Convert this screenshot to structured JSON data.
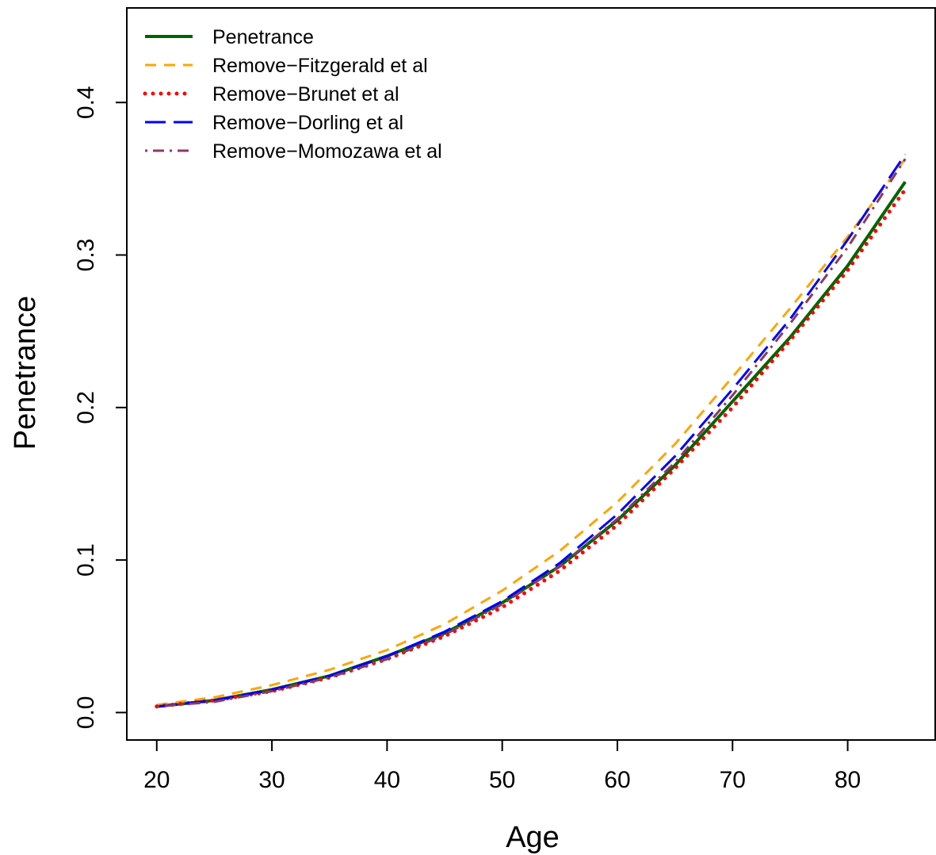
{
  "chart_data": {
    "type": "line",
    "title": "",
    "xlabel": "Age",
    "ylabel": "Penetrance",
    "xlim": [
      17.4,
      87.6
    ],
    "ylim": [
      -0.018,
      0.462
    ],
    "xticks": [
      20,
      30,
      40,
      50,
      60,
      70,
      80
    ],
    "yticks": [
      0.0,
      0.1,
      0.2,
      0.3,
      0.4
    ],
    "xtick_labels": [
      "20",
      "30",
      "40",
      "50",
      "60",
      "70",
      "80"
    ],
    "ytick_labels": [
      "0.0",
      "0.1",
      "0.2",
      "0.3",
      "0.4"
    ],
    "grid": false,
    "legend_position": "top-left",
    "x": [
      20,
      25,
      30,
      35,
      40,
      45,
      50,
      55,
      60,
      65,
      70,
      75,
      80,
      85
    ],
    "series": [
      {
        "name": "Penetrance",
        "color": "#006400",
        "dash": "solid",
        "values": [
          0.004,
          0.008,
          0.015,
          0.024,
          0.037,
          0.052,
          0.072,
          0.096,
          0.126,
          0.162,
          0.204,
          0.246,
          0.293,
          0.348
        ]
      },
      {
        "name": "Remove−Fitzgerald et al",
        "color": "#FFA500",
        "dash": "dashed",
        "values": [
          0.005,
          0.01,
          0.018,
          0.028,
          0.041,
          0.058,
          0.08,
          0.106,
          0.138,
          0.176,
          0.22,
          0.265,
          0.312,
          0.363
        ]
      },
      {
        "name": "Remove−Brunet et al",
        "color": "#FF0000",
        "dash": "dotted",
        "values": [
          0.004,
          0.008,
          0.014,
          0.023,
          0.035,
          0.05,
          0.069,
          0.093,
          0.123,
          0.16,
          0.2,
          0.244,
          0.29,
          0.343
        ]
      },
      {
        "name": "Remove−Dorling et al",
        "color": "#0000FF",
        "dash": "longdash",
        "values": [
          0.004,
          0.008,
          0.015,
          0.024,
          0.037,
          0.053,
          0.073,
          0.098,
          0.13,
          0.168,
          0.212,
          0.258,
          0.31,
          0.366
        ]
      },
      {
        "name": "Remove−Momozawa et al",
        "color": "#8B3A62",
        "dash": "dotdash",
        "values": [
          0.004,
          0.007,
          0.014,
          0.023,
          0.035,
          0.051,
          0.071,
          0.096,
          0.127,
          0.164,
          0.208,
          0.255,
          0.305,
          0.363
        ]
      }
    ]
  }
}
